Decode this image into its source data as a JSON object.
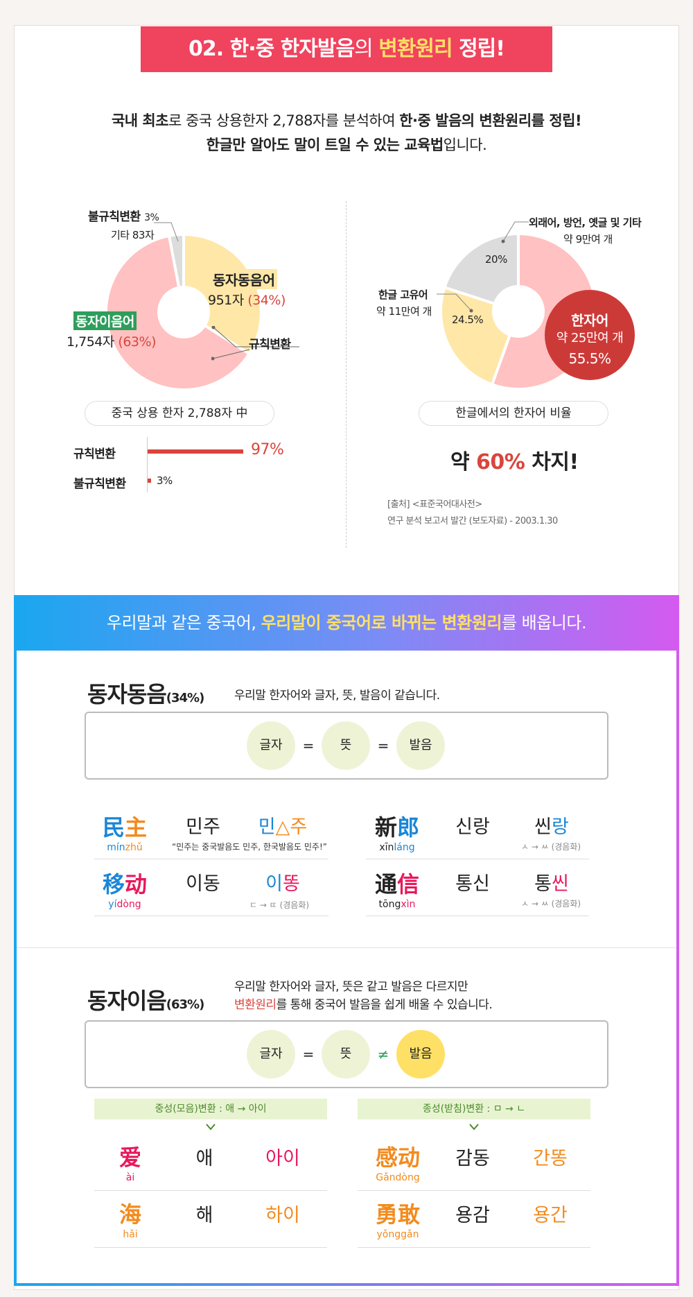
{
  "header": {
    "num": "02.",
    "part1": "한·중 한자발음",
    "part2": "의 ",
    "highlight": "변환원리",
    "part3": " 정립!"
  },
  "intro": {
    "line1_b1": "국내 최초",
    "line1_t1": "로 중국 상용한자 2,788자를 분석하여 ",
    "line1_b2": "한·중 발음의 변환원리를 정립!",
    "line2_b": "한글만 알아도 말이 트일 수 있는 교육법",
    "line2_t": "입니다."
  },
  "left_chart": {
    "irregular_label": "불규칙변환",
    "irregular_pct": "3%",
    "other_label": "기타 83자",
    "same_label": "동자동음어",
    "same_count": "951자",
    "same_pct": "(34%)",
    "diff_label": "동자이음어",
    "diff_count": "1,754자",
    "diff_pct": "(63%)",
    "regular_label": "규칙변환",
    "caption": "중국 상용 한자 2,788자 中",
    "bars": [
      {
        "label": "규칙변환",
        "value": "97%",
        "pct": 97
      },
      {
        "label": "불규칙변환",
        "value": "3%",
        "pct": 3
      }
    ]
  },
  "right_chart": {
    "foreign_label": "외래어, 방언, 옛글 및 기타",
    "foreign_sub": "약 9만여 개",
    "foreign_pct": "20%",
    "native_label": "한글 고유어",
    "native_sub": "약 11만여 개",
    "native_pct": "24.5%",
    "sino_label": "한자어",
    "sino_sub": "약 25만여 개",
    "sino_pct": "55.5%",
    "caption": "한글에서의 한자어 비율",
    "result_pre": "약 ",
    "result_num": "60%",
    "result_post": " 차지!",
    "source1": "[출처]  <표준국어대사전>",
    "source2": "연구 분석 보고서 발간 (보도자료) - 2003.1.30"
  },
  "banner": {
    "t1": "우리말과 같은 중국어, ",
    "hl": "우리말이 중국어로 바뀌는 변환원리",
    "t2": "를 배웁니다."
  },
  "same_section": {
    "title": "동자동음",
    "pct": "(34%)",
    "desc": "우리말 한자어와 글자, 뜻, 발음이 같습니다.",
    "eq": [
      "글자",
      "=",
      "뜻",
      "=",
      "발음"
    ],
    "rows": [
      {
        "h1": "民",
        "h2": "主",
        "py1": "mín",
        "py2": "zhǔ",
        "ko": "민주",
        "r1": "민",
        "r2": "△주",
        "note": "“민주는 중국발음도 민주, 한국발음도 민주!”"
      },
      {
        "h1": "移",
        "h2": "动",
        "py1": "yí",
        "py2": "dòng",
        "ko": "이동",
        "r1": "이",
        "r2": "똥",
        "note": "ㄷ → ㄸ (경음화)"
      },
      {
        "h1": "新",
        "h2": "郎",
        "py1": "xīn",
        "py2": "láng",
        "ko": "신랑",
        "r1": "씬",
        "r2": "랑",
        "note": "ㅅ → ㅆ (경음화)"
      },
      {
        "h1": "通",
        "h2": "信",
        "py1": "tōng",
        "py2": "xìn",
        "ko": "통신",
        "r1": "통",
        "r2": "씬",
        "note": "ㅅ → ㅆ (경음화)"
      }
    ]
  },
  "diff_section": {
    "title": "동자이음",
    "pct": "(63%)",
    "desc1": "우리말 한자어와 글자, 뜻은 같고 발음은 다르지만",
    "desc2_hl": "변환원리",
    "desc2": "를 통해 중국어 발음을 쉽게 배울 수 있습니다.",
    "eq": [
      "글자",
      "=",
      "뜻",
      "≠",
      "발음"
    ],
    "tag_left": "중성(모음)변환 : 애 → 아이",
    "tag_right": "종성(받침)변환 : ㅁ → ㄴ",
    "rows": [
      {
        "han": "爱",
        "py": "ài",
        "ko": "애",
        "cn": "아이"
      },
      {
        "han": "海",
        "py": "hǎi",
        "ko": "해",
        "cn": "하이"
      },
      {
        "han": "感动",
        "py": "Gǎndòng",
        "ko": "감동",
        "cn": "간똥"
      },
      {
        "han": "勇敢",
        "py": "yǒnggǎn",
        "ko": "용감",
        "cn": "용간"
      }
    ]
  },
  "colors": {
    "pink": "#f0435e",
    "yellow": "#ffe066",
    "salmon": "#ffc1c1",
    "cream": "#ffe7a8",
    "gray": "#dcdcdc",
    "red": "#d9453d"
  }
}
